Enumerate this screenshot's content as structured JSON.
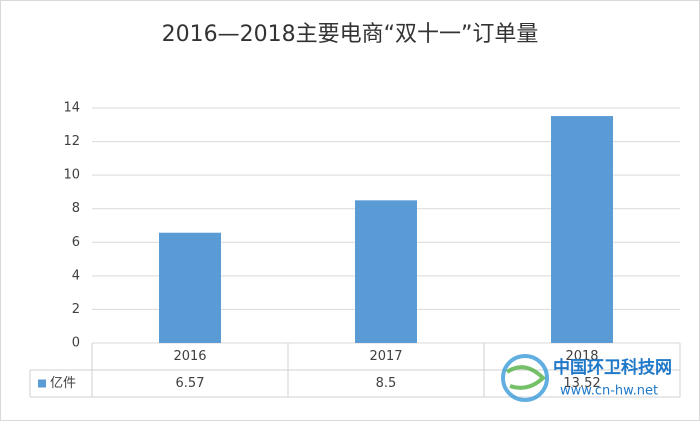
{
  "chart_data": {
    "type": "bar",
    "title": "2016—2018主要电商“双十一”订单量",
    "categories": [
      "2016",
      "2017",
      "2018"
    ],
    "series": [
      {
        "name": "亿件",
        "color": "#5b9bd5",
        "values": [
          6.57,
          8.5,
          13.52
        ]
      }
    ],
    "ylim": [
      0,
      14
    ],
    "yticks": [
      0,
      2,
      4,
      6,
      8,
      10,
      12,
      14
    ],
    "grid": true,
    "watermark": {
      "site": "中国环卫科技网",
      "url": "www.cn-hw.net"
    }
  }
}
